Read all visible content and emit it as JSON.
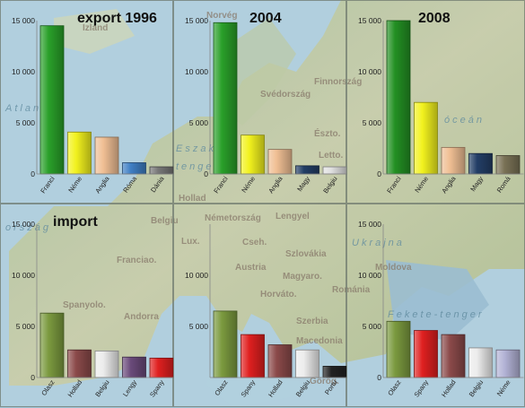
{
  "chart_data": [
    {
      "type": "bar",
      "title": "export 1996",
      "categories": [
        "Franci",
        "Néme",
        "Anglia",
        "Róma",
        "Dánia"
      ],
      "values": [
        14500,
        4100,
        3600,
        1100,
        700
      ],
      "colors": [
        "#2aa02a",
        "#f2f21e",
        "#f0bf94",
        "#3f7fc4",
        "#777777"
      ],
      "ylim": [
        0,
        15000
      ],
      "yticks": [
        "0",
        "5 000",
        "10 000",
        "15 000"
      ]
    },
    {
      "type": "bar",
      "title": "2004",
      "categories": [
        "Franci",
        "Néme",
        "Anglia",
        "Magy",
        "Belgiu"
      ],
      "values": [
        14800,
        3800,
        2400,
        800,
        700
      ],
      "colors": [
        "#2aa02a",
        "#f2f21e",
        "#f0bf94",
        "#233e66",
        "#e0e0e0"
      ],
      "ylim": [
        0,
        15000
      ],
      "yticks": [
        "0",
        "5 000",
        "10 000",
        "15 000"
      ]
    },
    {
      "type": "bar",
      "title": "2008",
      "categories": [
        "Franci",
        "Néme",
        "Anglia",
        "Magy",
        "Romá"
      ],
      "values": [
        15000,
        7000,
        2600,
        2000,
        1800
      ],
      "colors": [
        "#239023",
        "#f2f21e",
        "#f0bf94",
        "#233e66",
        "#7a7256"
      ],
      "ylim": [
        0,
        15000
      ],
      "yticks": [
        "0",
        "5 000",
        "10 000",
        "15 000"
      ]
    },
    {
      "type": "bar",
      "title": "import",
      "categories": [
        "Olasz",
        "Hollad",
        "Belgiu",
        "Lengy",
        "Spany"
      ],
      "values": [
        6300,
        2700,
        2600,
        2000,
        1900
      ],
      "colors": [
        "#7b9a3f",
        "#8b4a4a",
        "#ececec",
        "#6a4a7a",
        "#e02020"
      ],
      "ylim": [
        0,
        15000
      ],
      "yticks": [
        "0",
        "5 000",
        "10 000",
        "15 000"
      ]
    },
    {
      "type": "bar",
      "title": "",
      "categories": [
        "Olasz",
        "Spany",
        "Hollad",
        "Belgiu",
        "Portu"
      ],
      "values": [
        6500,
        4200,
        3200,
        2700,
        1100
      ],
      "colors": [
        "#7b9a3f",
        "#e02020",
        "#8b4a4a",
        "#ececec",
        "#222222"
      ],
      "ylim": [
        0,
        15000
      ],
      "yticks": [
        "",
        "5 000",
        "10 000",
        ""
      ]
    },
    {
      "type": "bar",
      "title": "",
      "categories": [
        "Olasz",
        "Spany",
        "Hollad",
        "Belgiu",
        "Néme"
      ],
      "values": [
        5500,
        4600,
        4200,
        2900,
        2700
      ],
      "colors": [
        "#7b9a3f",
        "#e02020",
        "#8b4a4a",
        "#ececec",
        "#b3b3d6"
      ],
      "ylim": [
        0,
        15000
      ],
      "yticks": [
        "0",
        "5 000",
        "10 000",
        "15 000"
      ]
    }
  ],
  "map_labels": [
    "Izland",
    "Atlanti-",
    "Eszaki-",
    "tenger",
    "Hollad",
    "Németország",
    "Lengyel",
    "Finnország",
    "Svédország",
    "Norvég",
    "Észto.",
    "Letto.",
    "Belgiu",
    "Lux.",
    "Franciao.",
    "Cseh.",
    "Szlovákia",
    "Austria",
    "Magyaro.",
    "Horváto.",
    "Románia",
    "Szerbia",
    "Macedonia",
    "Görög.",
    "Spanyolo.",
    "Andorra",
    "Moldova",
    "Ukrajna",
    "Fekete-tenger",
    "óceán",
    "ország"
  ]
}
